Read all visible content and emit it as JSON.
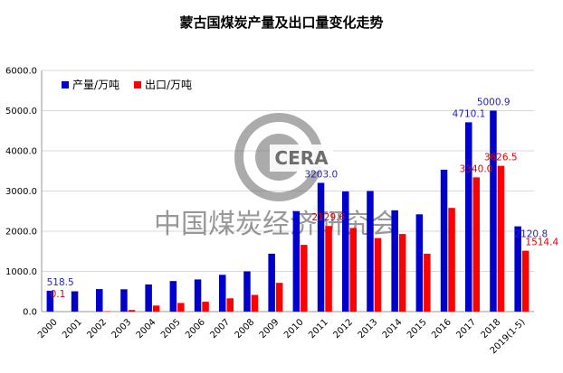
{
  "chart_data": {
    "type": "bar",
    "title": "蒙古国煤炭产量及出口量变化走势",
    "categories": [
      "2000",
      "2001",
      "2002",
      "2003",
      "2004",
      "2005",
      "2006",
      "2007",
      "2008",
      "2009",
      "2010",
      "2011",
      "2012",
      "2013",
      "2014",
      "2015",
      "2016",
      "2017",
      "2018",
      "2019(1-5)"
    ],
    "series": [
      {
        "name": "产量/万吨",
        "color": "#0000cc",
        "values": [
          518.5,
          505,
          560,
          555,
          675,
          760,
          800,
          915,
          1000,
          1440,
          2500,
          3203.0,
          2990,
          3000,
          2520,
          2420,
          3530,
          4710.1,
          5000.9,
          2120.8
        ],
        "labels": [
          "518.5",
          "",
          "",
          "",
          "",
          "",
          "",
          "",
          "",
          "",
          "",
          "3203.0",
          "",
          "",
          "",
          "",
          "",
          "4710.1",
          "5000.9",
          "2120.8"
        ]
      },
      {
        "name": "出口/万吨",
        "color": "#ff0000",
        "values": [
          0.1,
          0,
          10,
          40,
          150,
          215,
          245,
          330,
          415,
          715,
          1660,
          2129.6,
          2080,
          1830,
          1930,
          1440,
          2580,
          3340.0,
          3626.5,
          1514.4
        ],
        "labels": [
          "0.1",
          "",
          "",
          "",
          "",
          "",
          "",
          "",
          "",
          "",
          "",
          "2129.6",
          "",
          "",
          "",
          "",
          "",
          "3340.0",
          "3626.5",
          "1514.4"
        ]
      }
    ],
    "ylim": [
      0,
      6000
    ],
    "yticks": [
      "0.0",
      "1000.0",
      "2000.0",
      "3000.0",
      "4000.0",
      "5000.0",
      "6000.0"
    ],
    "ytick_values": [
      0,
      1000,
      2000,
      3000,
      4000,
      5000,
      6000
    ],
    "grid": true,
    "legend_position": "top-left"
  },
  "watermark": {
    "logo_text": "CERA",
    "org_name": "中国煤炭经济研究会"
  }
}
